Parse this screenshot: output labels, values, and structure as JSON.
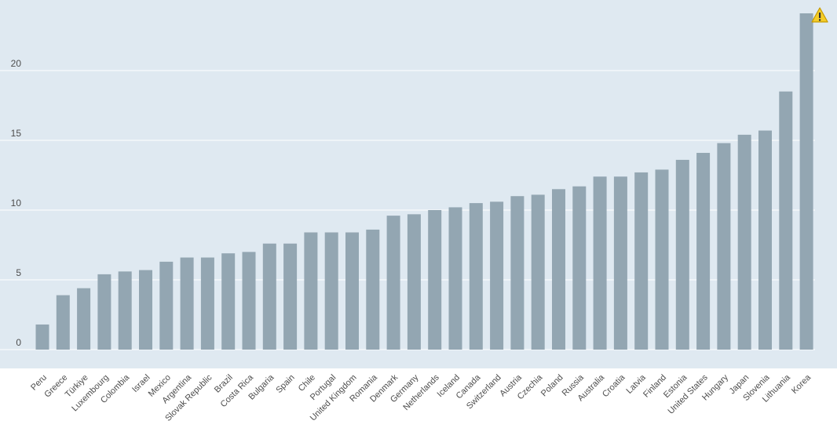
{
  "chart_data": {
    "type": "bar",
    "title": "",
    "xlabel": "",
    "ylabel": "",
    "ylim": [
      0,
      24.5
    ],
    "yticks": [
      0,
      5,
      10,
      15,
      20
    ],
    "grid": true,
    "categories": [
      "Peru",
      "Greece",
      "Türkiye",
      "Luxembourg",
      "Colombia",
      "Israel",
      "Mexico",
      "Argentina",
      "Slovak Republic",
      "Brazil",
      "Costa Rica",
      "Bulgaria",
      "Spain",
      "Chile",
      "Portugal",
      "United Kingdom",
      "Romania",
      "Denmark",
      "Germany",
      "Netherlands",
      "Iceland",
      "Canada",
      "Switzerland",
      "Austria",
      "Czechia",
      "Poland",
      "Russia",
      "Australia",
      "Croatia",
      "Latvia",
      "Finland",
      "Estonia",
      "United States",
      "Hungary",
      "Japan",
      "Slovenia",
      "Lithuania",
      "Korea"
    ],
    "values": [
      1.8,
      3.9,
      4.4,
      5.4,
      5.6,
      5.7,
      6.3,
      6.6,
      6.6,
      6.9,
      7.0,
      7.6,
      7.6,
      8.4,
      8.4,
      8.4,
      8.6,
      9.6,
      9.7,
      10.0,
      10.2,
      10.5,
      10.6,
      11.0,
      11.1,
      11.5,
      11.7,
      12.4,
      12.4,
      12.7,
      12.9,
      13.6,
      14.1,
      14.8,
      15.4,
      15.7,
      18.5,
      24.1
    ],
    "warning_category": "Korea",
    "colors": {
      "bar": "#93a6b2",
      "plot_background": "#dfe9f1",
      "gridline": "#ffffff",
      "tick_text": "#4d4d4d",
      "warning_fill": "#f5cd28",
      "warning_stroke": "#c69a00"
    },
    "warning_icon": "warning-triangle-icon"
  }
}
